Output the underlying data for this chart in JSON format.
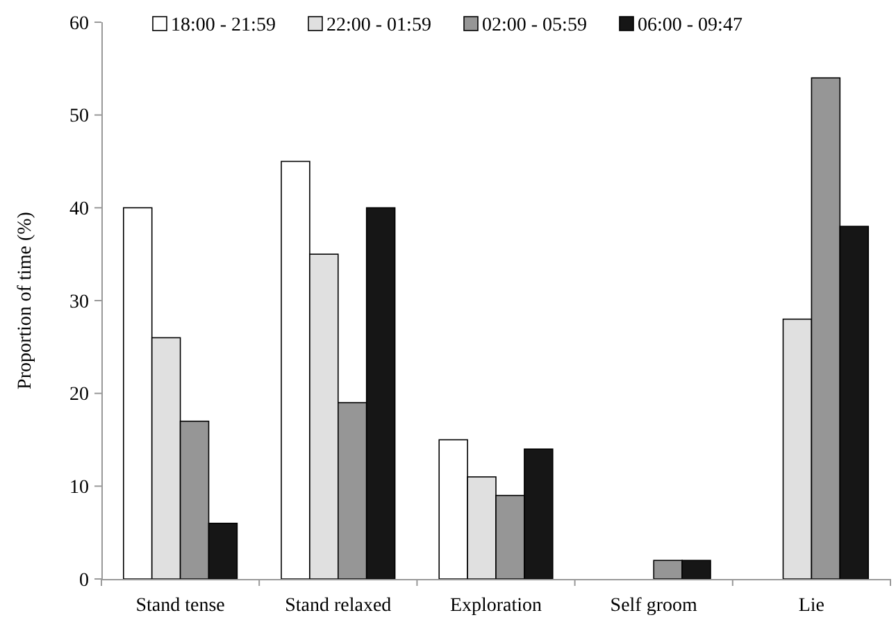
{
  "chart_data": {
    "type": "bar",
    "ylabel": "Proportion of time (%)",
    "categories": [
      "Stand tense",
      "Stand relaxed",
      "Exploration",
      "Self groom",
      "Lie"
    ],
    "series": [
      {
        "name": "18:00 - 21:59",
        "color": "#ffffff",
        "values": [
          40,
          45,
          15,
          0,
          0
        ]
      },
      {
        "name": "22:00 - 01:59",
        "color": "#e0e0e0",
        "values": [
          26,
          35,
          11,
          0,
          28
        ]
      },
      {
        "name": "02:00 - 05:59",
        "color": "#969696",
        "values": [
          17,
          19,
          9,
          2,
          54
        ]
      },
      {
        "name": "06:00 - 09:47",
        "color": "#161616",
        "values": [
          6,
          40,
          14,
          2,
          38
        ]
      }
    ],
    "ylim": [
      0,
      60
    ],
    "yticks": [
      0,
      10,
      20,
      30,
      40,
      50,
      60
    ],
    "grid": false,
    "legend": "top"
  }
}
